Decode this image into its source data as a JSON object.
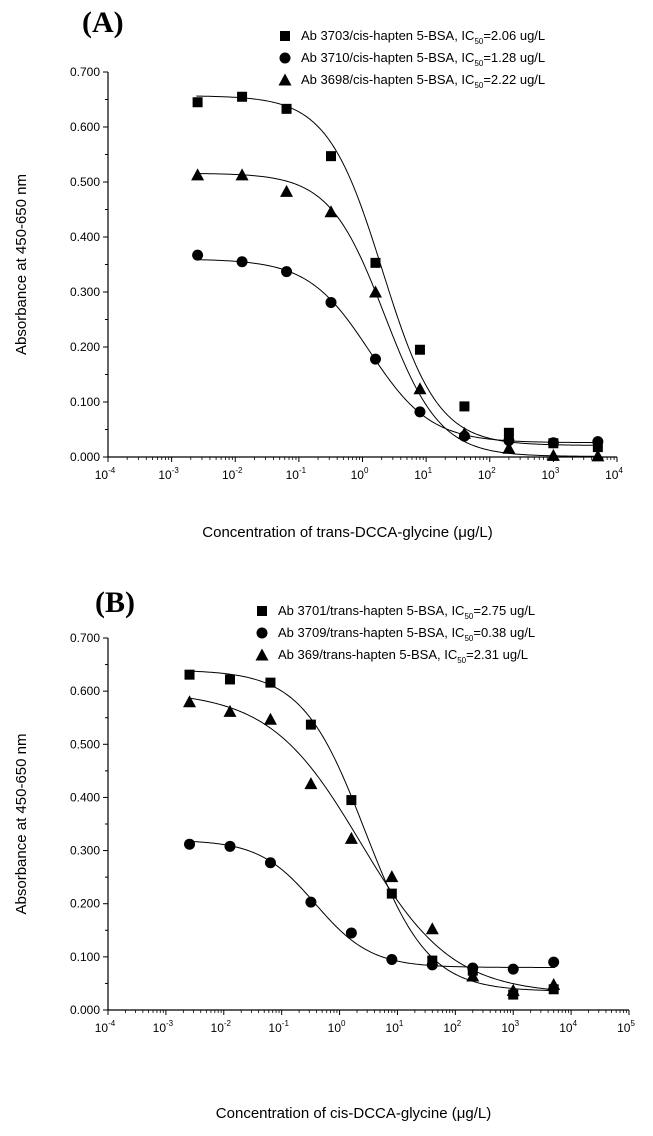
{
  "chart_data": [
    {
      "type": "scatter",
      "panel_label": "(A)",
      "xlabel": "Concentration of trans-DCCA-glycine (μg/L)",
      "ylabel": "Absorbance at 450-650 nm",
      "x_scale": "log",
      "xlim": [
        0.0001,
        10000
      ],
      "ylim": [
        0,
        0.7
      ],
      "x_ticks": [
        {
          "base": "10",
          "exp": "-4"
        },
        {
          "base": "10",
          "exp": "-3"
        },
        {
          "base": "10",
          "exp": "-2"
        },
        {
          "base": "10",
          "exp": "-1"
        },
        {
          "base": "10",
          "exp": "0"
        },
        {
          "base": "10",
          "exp": "1"
        },
        {
          "base": "10",
          "exp": "2"
        },
        {
          "base": "10",
          "exp": "3"
        },
        {
          "base": "10",
          "exp": "4"
        }
      ],
      "y_ticks": [
        "0.000",
        "0.100",
        "0.200",
        "0.300",
        "0.400",
        "0.500",
        "0.600",
        "0.700"
      ],
      "legend_position": "top-right",
      "x": [
        0.00256,
        0.0128,
        0.064,
        0.32,
        1.6,
        8,
        40,
        200,
        1000,
        5000
      ],
      "series": [
        {
          "name": "Ab 3703/cis-hapten 5-BSA, IC50=2.06 ug/L",
          "legend_pre": "Ab 3703/cis-hapten 5-BSA, IC",
          "legend_sub": "50",
          "legend_post": "=2.06 ug/L",
          "marker": "square",
          "values": [
            0.645,
            0.655,
            0.633,
            0.547,
            0.353,
            0.195,
            0.092,
            0.044,
            0.025,
            0.018
          ],
          "fit": {
            "top": 0.657,
            "bottom": 0.021,
            "ic50": 2.06,
            "slope": 1.0
          }
        },
        {
          "name": "Ab 3710/cis-hapten 5-BSA, IC50=1.28 ug/L",
          "legend_pre": "Ab 3710/cis-hapten 5-BSA, IC",
          "legend_sub": "50",
          "legend_post": "=1.28 ug/L",
          "marker": "circle",
          "values": [
            0.367,
            0.355,
            0.337,
            0.281,
            0.178,
            0.082,
            0.038,
            0.03,
            0.026,
            0.028
          ],
          "fit": {
            "top": 0.36,
            "bottom": 0.026,
            "ic50": 1.28,
            "slope": 0.9
          }
        },
        {
          "name": "Ab 3698/cis-hapten 5-BSA, IC50=2.22 ug/L",
          "legend_pre": "Ab 3698/cis-hapten 5-BSA, IC",
          "legend_sub": "50",
          "legend_post": "=2.22 ug/L",
          "marker": "triangle",
          "values": [
            0.513,
            0.513,
            0.483,
            0.446,
            0.3,
            0.124,
            0.043,
            0.016,
            0.003,
            0.002
          ],
          "fit": {
            "top": 0.516,
            "bottom": 0.001,
            "ic50": 2.22,
            "slope": 1.0
          }
        }
      ]
    },
    {
      "type": "scatter",
      "panel_label": "(B)",
      "xlabel": "Concentration of cis-DCCA-glycine (μg/L)",
      "ylabel": "Absorbance at 450-650 nm",
      "x_scale": "log",
      "xlim": [
        0.0001,
        100000
      ],
      "ylim": [
        0,
        0.7
      ],
      "x_ticks": [
        {
          "base": "10",
          "exp": "-4"
        },
        {
          "base": "10",
          "exp": "-3"
        },
        {
          "base": "10",
          "exp": "-2"
        },
        {
          "base": "10",
          "exp": "-1"
        },
        {
          "base": "10",
          "exp": "0"
        },
        {
          "base": "10",
          "exp": "1"
        },
        {
          "base": "10",
          "exp": "2"
        },
        {
          "base": "10",
          "exp": "3"
        },
        {
          "base": "10",
          "exp": "4"
        },
        {
          "base": "10",
          "exp": "5"
        }
      ],
      "y_ticks": [
        "0.000",
        "0.100",
        "0.200",
        "0.300",
        "0.400",
        "0.500",
        "0.600",
        "0.700"
      ],
      "legend_position": "top-right",
      "x": [
        0.00256,
        0.0128,
        0.064,
        0.32,
        1.6,
        8,
        40,
        200,
        1000,
        5000
      ],
      "series": [
        {
          "name": "Ab 3701/trans-hapten 5-BSA, IC50=2.75 ug/L",
          "legend_pre": "Ab 3701/trans-hapten 5-BSA, IC",
          "legend_sub": "50",
          "legend_post": "=2.75 ug/L",
          "marker": "square",
          "values": [
            0.631,
            0.622,
            0.616,
            0.537,
            0.395,
            0.219,
            0.093,
            0.074,
            0.029,
            0.039
          ],
          "fit": {
            "top": 0.64,
            "bottom": 0.035,
            "ic50": 2.75,
            "slope": 0.8
          }
        },
        {
          "name": "Ab 3709/trans-hapten 5-BSA, IC50=0.38 ug/L",
          "legend_pre": "Ab 3709/trans-hapten 5-BSA, IC",
          "legend_sub": "50",
          "legend_post": "=0.38 ug/L",
          "marker": "circle",
          "values": [
            0.312,
            0.308,
            0.277,
            0.203,
            0.145,
            0.095,
            0.085,
            0.079,
            0.077,
            0.09
          ],
          "fit": {
            "top": 0.32,
            "bottom": 0.08,
            "ic50": 0.38,
            "slope": 0.9
          }
        },
        {
          "name": "Ab 369/trans-hapten 5-BSA, IC50=2.31 ug/L",
          "legend_pre": "Ab 369/trans-hapten 5-BSA, IC",
          "legend_sub": "50",
          "legend_post": "=2.31 ug/L",
          "marker": "triangle",
          "values": [
            0.58,
            0.562,
            0.547,
            0.426,
            0.323,
            0.251,
            0.153,
            0.064,
            0.037,
            0.048
          ],
          "fit": {
            "top": 0.6,
            "bottom": 0.03,
            "ic50": 2.31,
            "slope": 0.55
          }
        }
      ]
    }
  ]
}
